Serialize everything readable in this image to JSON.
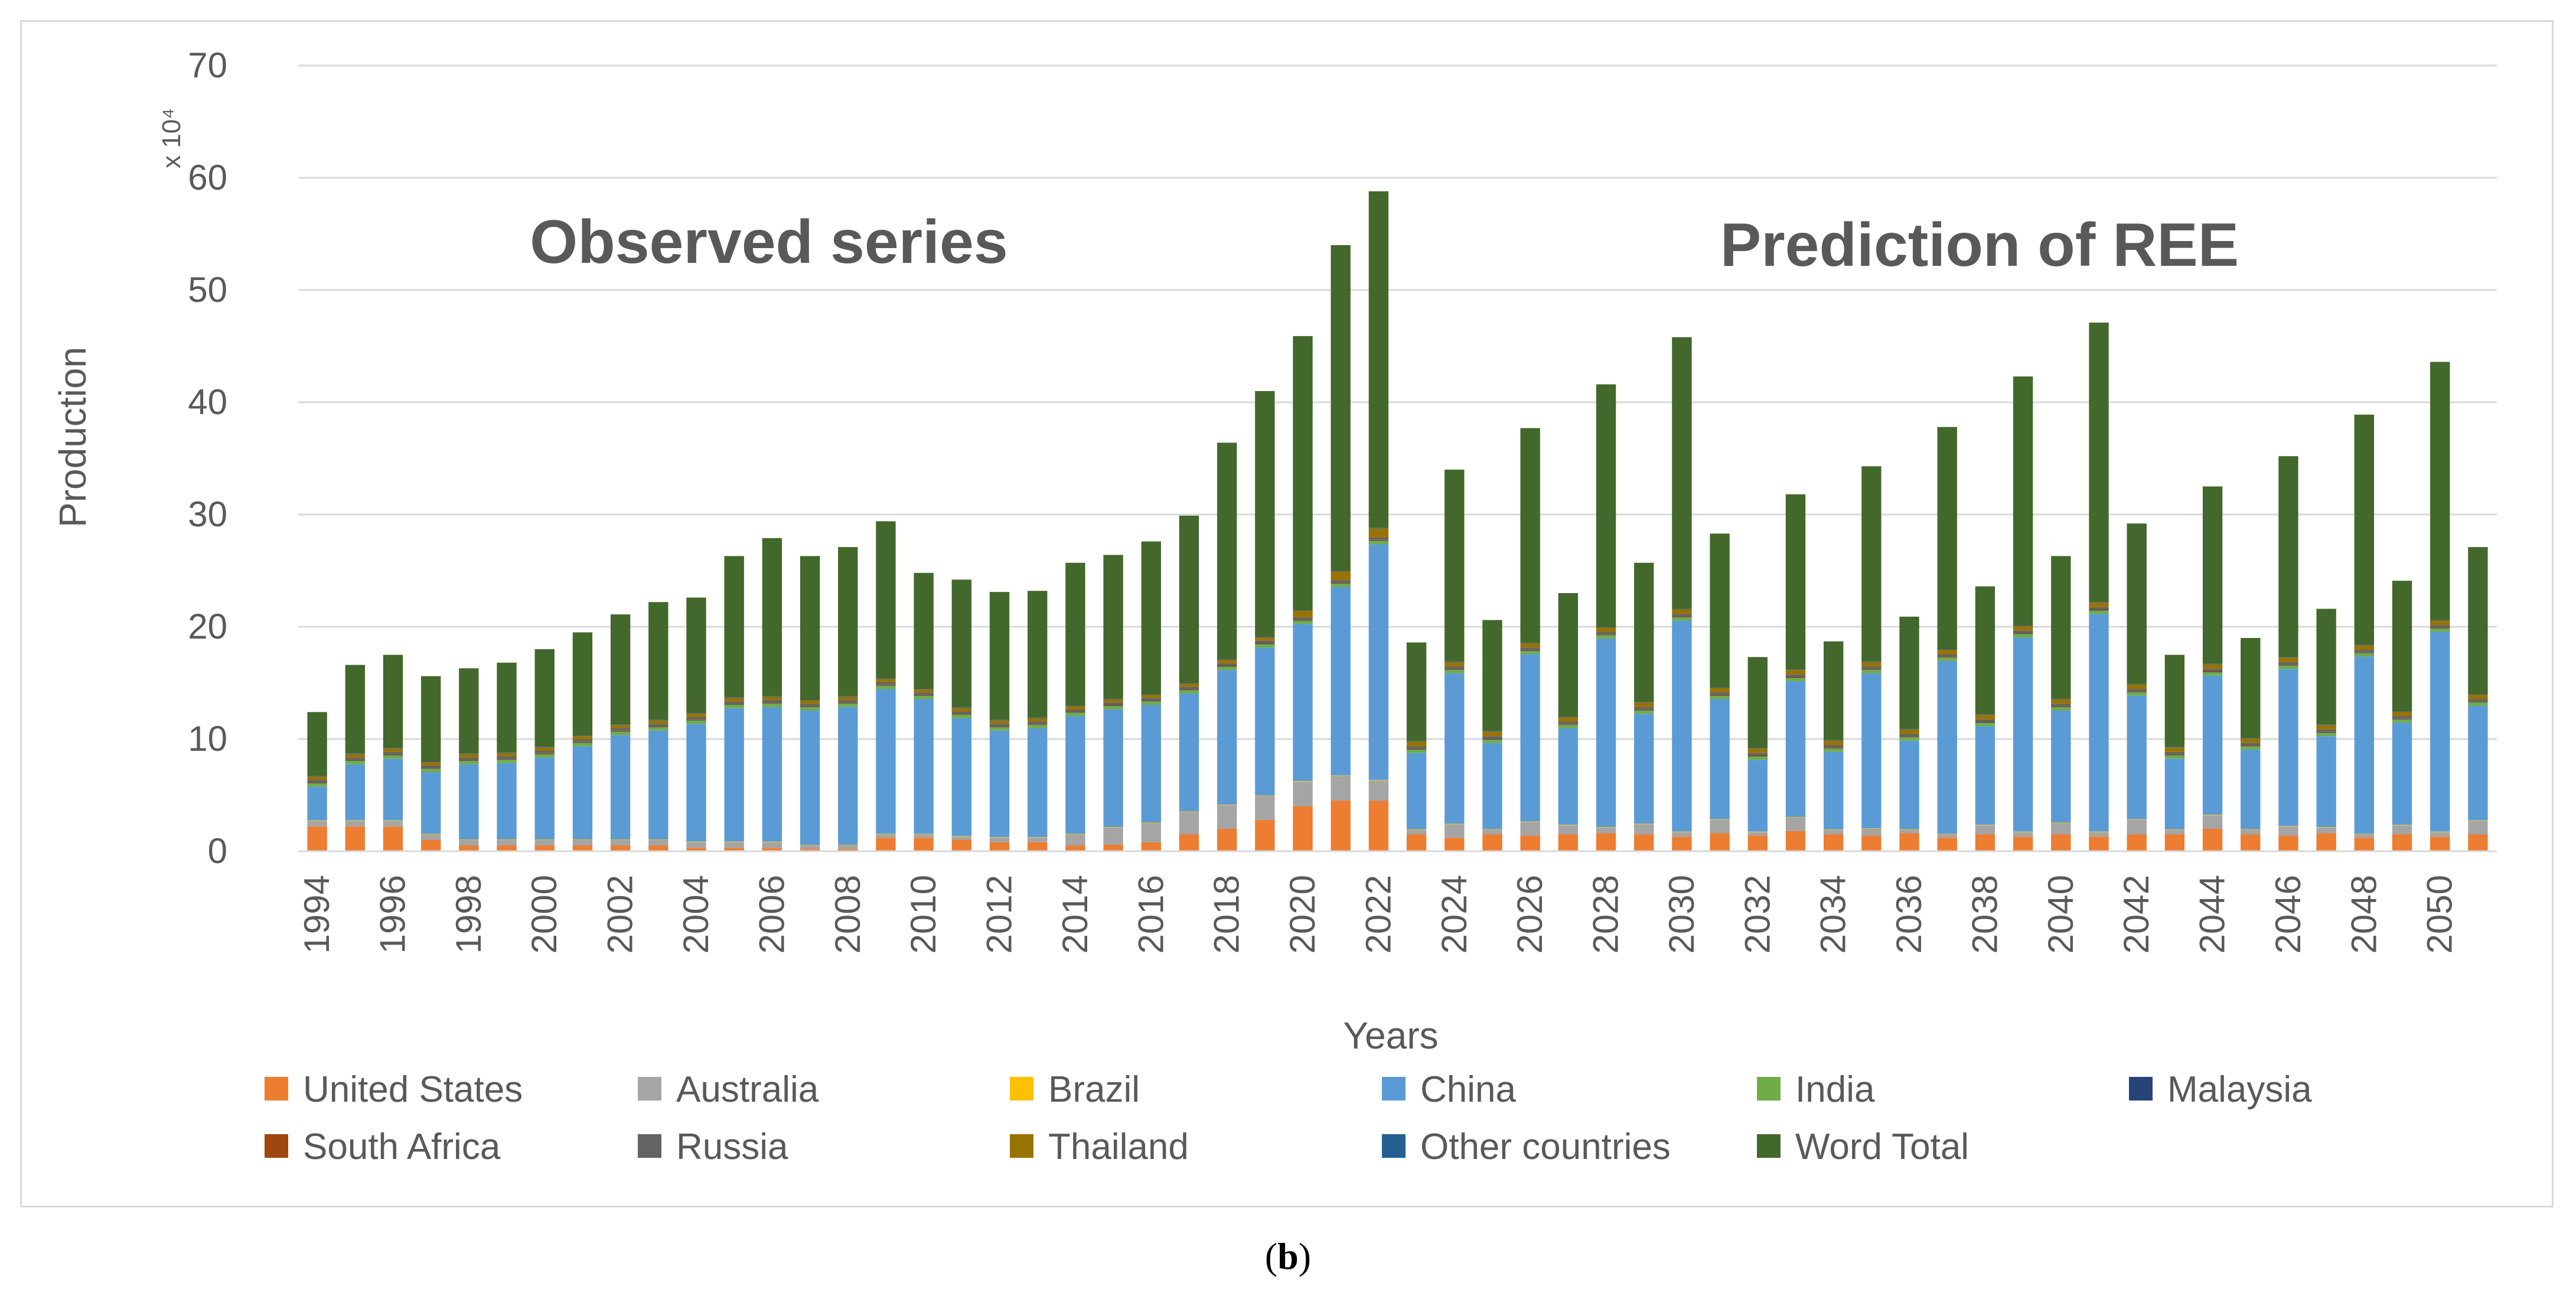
{
  "caption": {
    "open": "(",
    "label": "b",
    "close": ")"
  },
  "chart_data": {
    "type": "bar",
    "stacked": true,
    "title": "",
    "xlabel": "Years",
    "ylabel": "Production",
    "y_unit": "x 10⁴",
    "ylim": [
      0,
      70
    ],
    "yticks": [
      0,
      10,
      20,
      30,
      40,
      50,
      60,
      70
    ],
    "grid": true,
    "legend_position": "bottom",
    "annotations": [
      "Observed series",
      "Prediction  of REE"
    ],
    "categories": [
      "1994",
      "1995",
      "1996",
      "1997",
      "1998",
      "1999",
      "2000",
      "2001",
      "2002",
      "2003",
      "2004",
      "2005",
      "2006",
      "2007",
      "2008",
      "2009",
      "2010",
      "2011",
      "2012",
      "2013",
      "2014",
      "2015",
      "2016",
      "2017",
      "2018",
      "2019",
      "2020",
      "2021",
      "2022",
      "2023",
      "2024",
      "2025",
      "2026",
      "2027",
      "2028",
      "2029",
      "2030",
      "2031",
      "2032",
      "2033",
      "2034",
      "2035",
      "2036",
      "2037",
      "2038",
      "2039",
      "2040",
      "2041",
      "2042",
      "2043",
      "2044",
      "2045",
      "2046",
      "2047",
      "2048",
      "2049",
      "2050",
      "2051"
    ],
    "tick_labels": [
      "1994",
      "1996",
      "1998",
      "2000",
      "2002",
      "2004",
      "2006",
      "2008",
      "2010",
      "2012",
      "2014",
      "2016",
      "2018",
      "2020",
      "2022",
      "2024",
      "2026",
      "2028",
      "2030",
      "2032",
      "2034",
      "2036",
      "2038",
      "2040",
      "2042",
      "2044",
      "2046",
      "2048",
      "2050"
    ],
    "series": [
      {
        "name": "United States",
        "color": "#ed7d31",
        "values": [
          2.2,
          2.2,
          2.2,
          1.0,
          0.5,
          0.5,
          0.5,
          0.5,
          0.5,
          0.5,
          0.3,
          0.3,
          0.3,
          0.2,
          0.2,
          1.2,
          1.2,
          1.0,
          0.8,
          0.8,
          0.5,
          0.6,
          0.8,
          1.5,
          2.0,
          2.8,
          4.0,
          4.5,
          4.5,
          1.5,
          1.2,
          1.5,
          1.4,
          1.5,
          1.6,
          1.5,
          1.3,
          1.6,
          1.4,
          1.8,
          1.5,
          1.4,
          1.6,
          1.2,
          1.5,
          1.3,
          1.5,
          1.3,
          1.5,
          1.5,
          2.0,
          1.5,
          1.4,
          1.6,
          1.2,
          1.5,
          1.3,
          1.5
        ]
      },
      {
        "name": "Australia",
        "color": "#a5a5a5",
        "values": [
          0.5,
          0.5,
          0.5,
          0.5,
          0.5,
          0.5,
          0.5,
          0.5,
          0.5,
          0.5,
          0.5,
          0.5,
          0.5,
          0.3,
          0.3,
          0.3,
          0.3,
          0.3,
          0.4,
          0.4,
          1.0,
          1.5,
          1.7,
          2.0,
          2.1,
          2.1,
          2.2,
          2.2,
          1.8,
          0.4,
          1.2,
          0.4,
          1.2,
          0.8,
          0.5,
          0.9,
          0.4,
          1.2,
          0.3,
          1.2,
          0.4,
          0.6,
          0.3,
          0.3,
          0.8,
          0.4,
          1.0,
          0.4,
          1.3,
          0.4,
          1.2,
          0.4,
          0.8,
          0.5,
          0.3,
          0.8,
          0.4,
          1.2
        ]
      },
      {
        "name": "Brazil",
        "color": "#ffc000",
        "values": [
          0.05,
          0.05,
          0.05,
          0.05,
          0.05,
          0.05,
          0.05,
          0.05,
          0.05,
          0.05,
          0.05,
          0.05,
          0.05,
          0.05,
          0.05,
          0.05,
          0.05,
          0.05,
          0.05,
          0.05,
          0.05,
          0.05,
          0.05,
          0.05,
          0.05,
          0.05,
          0.05,
          0.05,
          0.05,
          0.05,
          0.05,
          0.05,
          0.05,
          0.05,
          0.05,
          0.05,
          0.05,
          0.05,
          0.05,
          0.05,
          0.05,
          0.05,
          0.05,
          0.05,
          0.05,
          0.05,
          0.05,
          0.05,
          0.05,
          0.05,
          0.05,
          0.05,
          0.05,
          0.05,
          0.05,
          0.05,
          0.05,
          0.05
        ]
      },
      {
        "name": "China",
        "color": "#5b9bd5",
        "values": [
          3.0,
          5.0,
          5.5,
          5.5,
          6.7,
          6.8,
          7.3,
          8.3,
          9.3,
          9.7,
          10.5,
          11.9,
          12.0,
          12.0,
          12.3,
          12.9,
          12.0,
          10.5,
          9.5,
          9.7,
          10.5,
          10.5,
          10.5,
          10.5,
          12.0,
          13.2,
          14.0,
          16.8,
          21.0,
          6.8,
          13.4,
          7.7,
          14.9,
          8.6,
          16.8,
          9.8,
          18.8,
          10.7,
          6.4,
          12.1,
          6.9,
          13.8,
          7.9,
          15.4,
          8.8,
          17.3,
          10.0,
          19.4,
          11.0,
          6.3,
          12.4,
          7.1,
          14.0,
          8.1,
          15.8,
          9.1,
          17.8,
          10.2
        ]
      },
      {
        "name": "India",
        "color": "#70ad47",
        "values": [
          0.3,
          0.3,
          0.3,
          0.3,
          0.3,
          0.3,
          0.3,
          0.3,
          0.3,
          0.3,
          0.3,
          0.3,
          0.3,
          0.3,
          0.3,
          0.3,
          0.3,
          0.3,
          0.3,
          0.3,
          0.3,
          0.3,
          0.3,
          0.3,
          0.3,
          0.3,
          0.3,
          0.3,
          0.3,
          0.3,
          0.3,
          0.3,
          0.3,
          0.3,
          0.3,
          0.3,
          0.3,
          0.3,
          0.3,
          0.3,
          0.3,
          0.3,
          0.3,
          0.3,
          0.3,
          0.3,
          0.3,
          0.3,
          0.3,
          0.3,
          0.3,
          0.3,
          0.3,
          0.3,
          0.3,
          0.3,
          0.3,
          0.3
        ]
      },
      {
        "name": "Malaysia",
        "color": "#264478",
        "values": [
          0.05,
          0.05,
          0.05,
          0.05,
          0.05,
          0.05,
          0.05,
          0.05,
          0.05,
          0.05,
          0.05,
          0.05,
          0.05,
          0.05,
          0.05,
          0.05,
          0.05,
          0.05,
          0.05,
          0.05,
          0.05,
          0.05,
          0.05,
          0.05,
          0.05,
          0.05,
          0.05,
          0.05,
          0.05,
          0.05,
          0.05,
          0.05,
          0.05,
          0.05,
          0.05,
          0.05,
          0.05,
          0.05,
          0.05,
          0.05,
          0.05,
          0.05,
          0.05,
          0.05,
          0.05,
          0.05,
          0.05,
          0.05,
          0.05,
          0.05,
          0.05,
          0.05,
          0.05,
          0.05,
          0.05,
          0.05,
          0.05,
          0.05
        ]
      },
      {
        "name": "South Africa",
        "color": "#9e480e",
        "values": [
          0.05,
          0.05,
          0.05,
          0.05,
          0.05,
          0.05,
          0.05,
          0.05,
          0.05,
          0.05,
          0.05,
          0.05,
          0.05,
          0.05,
          0.05,
          0.05,
          0.05,
          0.05,
          0.05,
          0.05,
          0.05,
          0.05,
          0.05,
          0.05,
          0.05,
          0.05,
          0.05,
          0.05,
          0.05,
          0.05,
          0.05,
          0.05,
          0.05,
          0.05,
          0.05,
          0.05,
          0.05,
          0.05,
          0.05,
          0.05,
          0.05,
          0.05,
          0.05,
          0.05,
          0.05,
          0.05,
          0.05,
          0.05,
          0.05,
          0.05,
          0.05,
          0.05,
          0.05,
          0.05,
          0.05,
          0.05,
          0.05,
          0.05
        ]
      },
      {
        "name": "Russia",
        "color": "#636363",
        "values": [
          0.2,
          0.2,
          0.2,
          0.2,
          0.2,
          0.2,
          0.2,
          0.2,
          0.2,
          0.2,
          0.2,
          0.2,
          0.2,
          0.2,
          0.2,
          0.2,
          0.2,
          0.2,
          0.2,
          0.2,
          0.2,
          0.2,
          0.2,
          0.2,
          0.2,
          0.2,
          0.2,
          0.2,
          0.2,
          0.2,
          0.2,
          0.2,
          0.2,
          0.2,
          0.2,
          0.2,
          0.2,
          0.2,
          0.2,
          0.2,
          0.2,
          0.2,
          0.2,
          0.2,
          0.2,
          0.2,
          0.2,
          0.2,
          0.2,
          0.2,
          0.2,
          0.2,
          0.2,
          0.2,
          0.2,
          0.2,
          0.2,
          0.2
        ]
      },
      {
        "name": "Thailand",
        "color": "#997300",
        "values": [
          0.3,
          0.3,
          0.3,
          0.3,
          0.3,
          0.3,
          0.3,
          0.3,
          0.3,
          0.3,
          0.3,
          0.3,
          0.3,
          0.3,
          0.3,
          0.3,
          0.3,
          0.3,
          0.3,
          0.3,
          0.3,
          0.3,
          0.3,
          0.3,
          0.3,
          0.3,
          0.6,
          0.8,
          0.8,
          0.4,
          0.4,
          0.4,
          0.4,
          0.4,
          0.4,
          0.4,
          0.4,
          0.4,
          0.4,
          0.4,
          0.4,
          0.4,
          0.4,
          0.4,
          0.4,
          0.4,
          0.4,
          0.4,
          0.4,
          0.4,
          0.4,
          0.4,
          0.4,
          0.4,
          0.4,
          0.4,
          0.4,
          0.4
        ]
      },
      {
        "name": "Other countries",
        "color": "#255e91",
        "values": [
          0.05,
          0.05,
          0.05,
          0.05,
          0.05,
          0.05,
          0.05,
          0.05,
          0.05,
          0.05,
          0.05,
          0.05,
          0.05,
          0.05,
          0.05,
          0.05,
          0.05,
          0.05,
          0.05,
          0.05,
          0.05,
          0.05,
          0.05,
          0.05,
          0.05,
          0.05,
          0.05,
          0.05,
          0.05,
          0.05,
          0.05,
          0.05,
          0.05,
          0.05,
          0.05,
          0.05,
          0.05,
          0.05,
          0.05,
          0.05,
          0.05,
          0.05,
          0.05,
          0.05,
          0.05,
          0.05,
          0.05,
          0.05,
          0.05,
          0.05,
          0.05,
          0.05,
          0.05,
          0.05,
          0.05,
          0.05,
          0.05,
          0.05
        ]
      },
      {
        "name": "Word Total",
        "color": "#43682b",
        "values": [
          5.7,
          7.9,
          8.3,
          7.6,
          7.6,
          8.0,
          8.7,
          9.2,
          9.8,
          10.5,
          10.3,
          12.6,
          14.1,
          12.8,
          13.3,
          14.0,
          10.3,
          11.4,
          11.4,
          11.3,
          12.7,
          12.8,
          13.6,
          14.9,
          19.3,
          21.9,
          24.4,
          29.0,
          30.0,
          8.8,
          17.1,
          9.9,
          19.1,
          11.0,
          21.6,
          12.4,
          24.2,
          13.7,
          8.1,
          15.6,
          8.8,
          17.4,
          10.0,
          19.8,
          11.4,
          22.2,
          12.7,
          24.9,
          14.3,
          8.2,
          15.8,
          8.9,
          17.9,
          10.3,
          20.5,
          11.6,
          23.0,
          13.1
        ]
      }
    ]
  }
}
